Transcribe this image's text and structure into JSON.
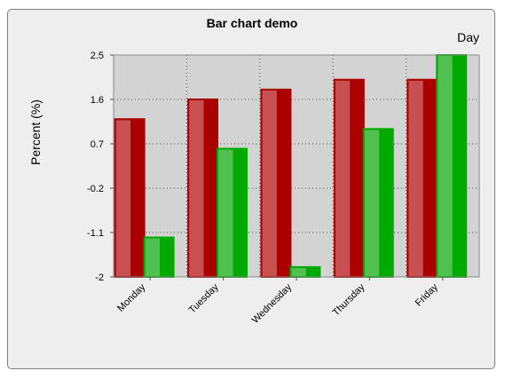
{
  "chart_data": {
    "type": "bar",
    "title": "Bar chart demo",
    "xlabel": "Day",
    "ylabel": "Percent (%)",
    "categories": [
      "Monday",
      "Tuesday",
      "Wednesday",
      "Thursday",
      "Friday"
    ],
    "series": [
      {
        "values": [
          1.2,
          1.6,
          1.8,
          2.0,
          2.0
        ],
        "color": "#aa0000",
        "highlight": "#c85050"
      },
      {
        "values": [
          -1.2,
          0.6,
          -1.8,
          1.0,
          2.5
        ],
        "color": "#00aa00",
        "highlight": "#50c050"
      }
    ],
    "yticks": [
      "2.5",
      "1.6",
      "0.7",
      "-0.2",
      "-1.1",
      "-2"
    ],
    "ylim": [
      -2,
      2.5
    ],
    "plot_background": "#d3d3d3",
    "grid": true
  }
}
